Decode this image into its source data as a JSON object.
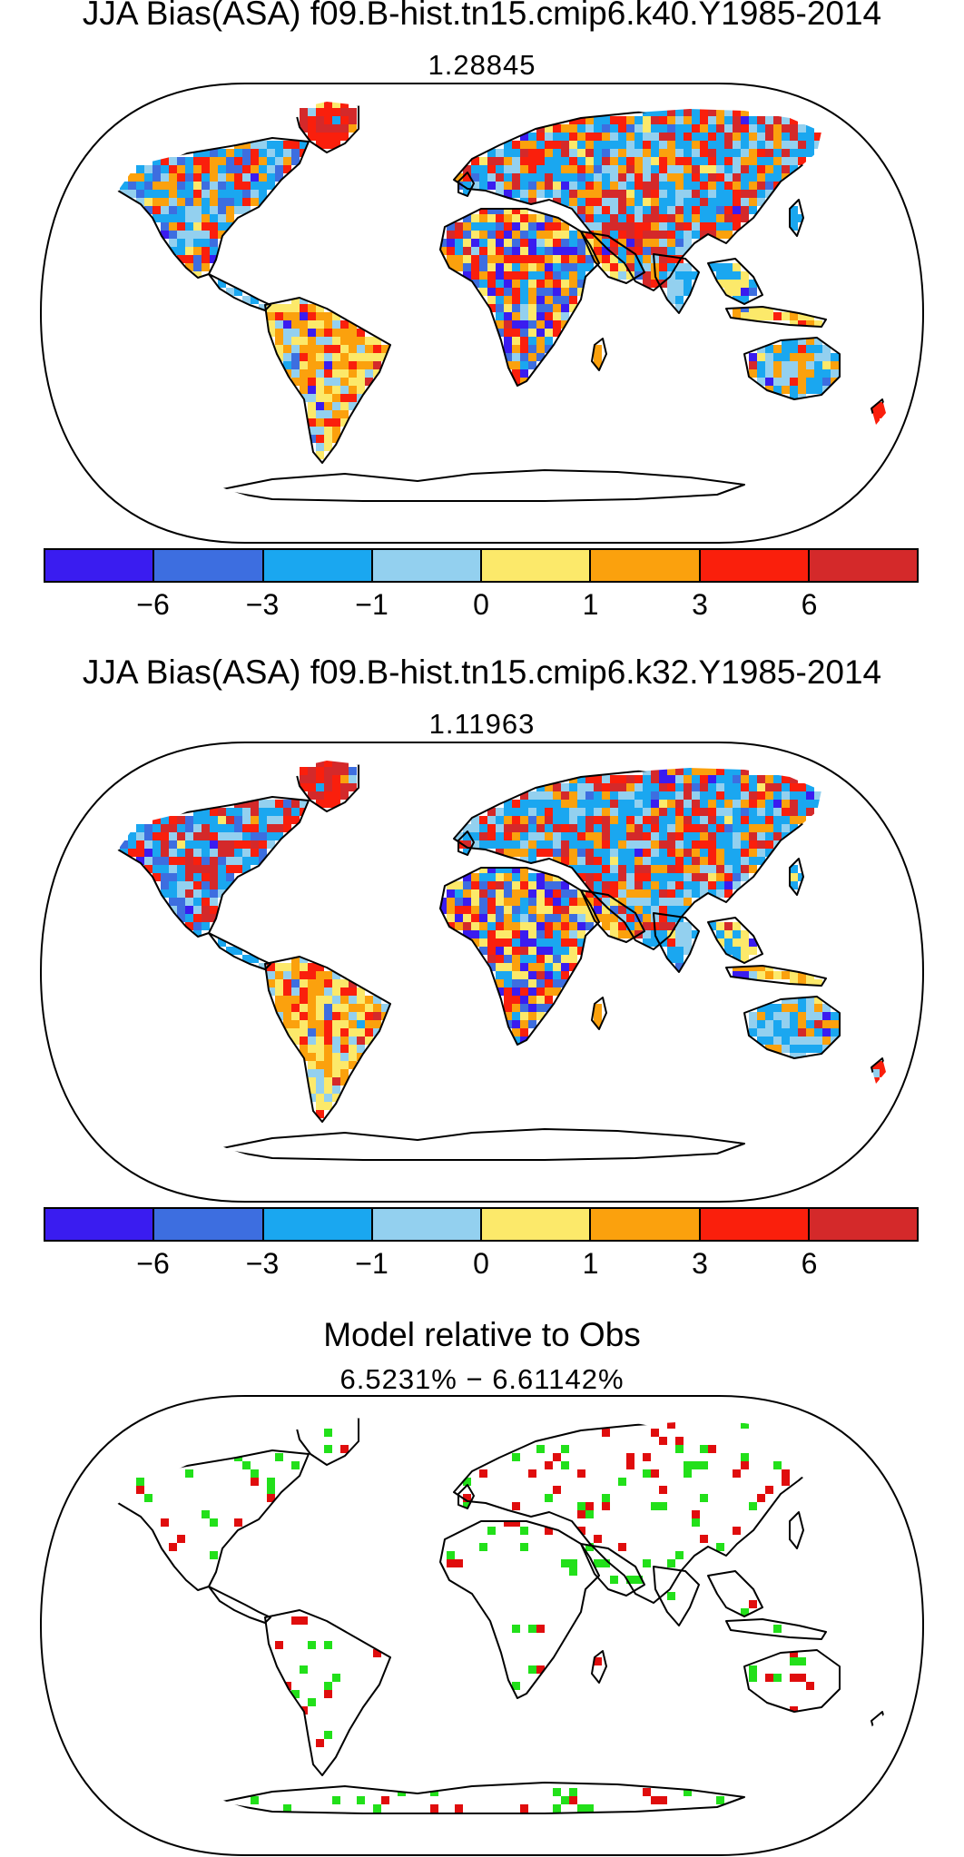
{
  "panels": [
    {
      "title": "JJA Bias(ASA) f09.B-hist.tn15.cmip6.k40.Y1985-2014",
      "value": "1.28845"
    },
    {
      "title": "JJA Bias(ASA) f09.B-hist.tn15.cmip6.k32.Y1985-2014",
      "value": "1.11963"
    },
    {
      "title": "Model relative to Obs",
      "value": "6.5231% − 6.61142%"
    }
  ],
  "colorbar": {
    "colors": [
      "#3a1cf0",
      "#3d6ee0",
      "#1aa7f0",
      "#93d0ef",
      "#fce96a",
      "#fba10d",
      "#fa1f0c",
      "#d4292a"
    ],
    "tick_labels": [
      "−6",
      "−3",
      "−1",
      "0",
      "1",
      "3",
      "6"
    ]
  },
  "comparison_colors": {
    "model_better": "#22e01a",
    "model_worse": "#e00d0d"
  }
}
